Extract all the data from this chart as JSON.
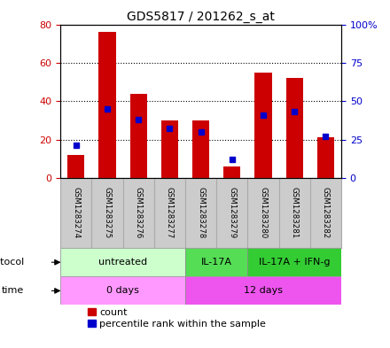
{
  "title": "GDS5817 / 201262_s_at",
  "samples": [
    "GSM1283274",
    "GSM1283275",
    "GSM1283276",
    "GSM1283277",
    "GSM1283278",
    "GSM1283279",
    "GSM1283280",
    "GSM1283281",
    "GSM1283282"
  ],
  "count_values": [
    12,
    76,
    44,
    30,
    30,
    6,
    55,
    52,
    21
  ],
  "percentile_values": [
    21,
    45,
    38,
    32,
    30,
    12,
    41,
    43,
    27
  ],
  "left_ylim": [
    0,
    80
  ],
  "right_ylim": [
    0,
    100
  ],
  "left_yticks": [
    0,
    20,
    40,
    60,
    80
  ],
  "right_yticks": [
    0,
    25,
    50,
    75,
    100
  ],
  "right_yticklabels": [
    "0",
    "25",
    "50",
    "75",
    "100%"
  ],
  "bar_color": "#cc0000",
  "percentile_color": "#0000cc",
  "protocol_groups": [
    {
      "label": "untreated",
      "start": 0,
      "end": 4,
      "color": "#ccffcc"
    },
    {
      "label": "IL-17A",
      "start": 4,
      "end": 6,
      "color": "#55dd55"
    },
    {
      "label": "IL-17A + IFN-g",
      "start": 6,
      "end": 9,
      "color": "#33cc33"
    }
  ],
  "time_groups": [
    {
      "label": "0 days",
      "start": 0,
      "end": 4,
      "color": "#ff99ff"
    },
    {
      "label": "12 days",
      "start": 4,
      "end": 9,
      "color": "#ee55ee"
    }
  ],
  "protocol_label": "protocol",
  "time_label": "time",
  "legend_count_label": "count",
  "legend_percentile_label": "percentile rank within the sample",
  "bar_width": 0.55,
  "background_color": "#ffffff",
  "plot_bg_color": "#ffffff",
  "grid_color": "#000000",
  "tick_label_color_left": "#cc0000",
  "tick_label_color_right": "#0000cc",
  "sample_box_color": "#cccccc",
  "sample_box_edge": "#aaaaaa"
}
